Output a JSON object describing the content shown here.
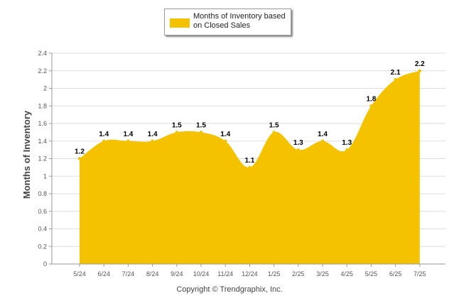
{
  "chart_data": {
    "type": "area",
    "title": "",
    "xlabel": "",
    "ylabel": "Months of Inventory",
    "categories": [
      "5/24",
      "6/24",
      "7/24",
      "8/24",
      "9/24",
      "10/24",
      "11/24",
      "12/24",
      "1/25",
      "2/25",
      "3/25",
      "4/25",
      "5/25",
      "6/25",
      "7/25"
    ],
    "series": [
      {
        "name": "Months of Inventory based on Closed Sales",
        "values": [
          1.2,
          1.4,
          1.4,
          1.4,
          1.5,
          1.5,
          1.4,
          1.1,
          1.5,
          1.3,
          1.4,
          1.3,
          1.8,
          2.1,
          2.2
        ]
      }
    ],
    "ylim": [
      0,
      2.4
    ],
    "yticks": [
      0,
      0.2,
      0.4,
      0.6,
      0.8,
      1,
      1.2,
      1.4,
      1.6,
      1.8,
      2,
      2.2,
      2.4
    ],
    "grid": true,
    "legend_position": "top-center",
    "colors": {
      "fill": "#F5C200",
      "grid": "#dddddd"
    }
  },
  "legend": {
    "label": "Months of Inventory based on Closed Sales"
  },
  "footer": {
    "copyright": "Copyright © Trendgraphix, Inc."
  }
}
